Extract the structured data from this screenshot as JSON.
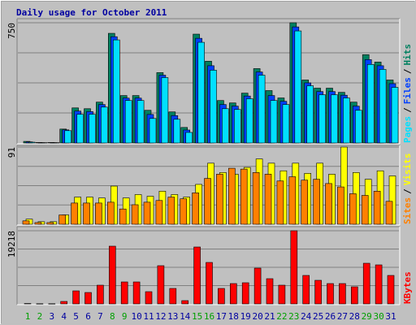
{
  "title": "Daily usage for October 2011",
  "legend_separator": "/",
  "chart_data": [
    {
      "type": "bar",
      "ylim": [
        0,
        750
      ],
      "yticks": [
        750
      ],
      "series": [
        {
          "name": "Hits",
          "color": "#008060",
          "values": [
            10,
            3,
            3,
            87,
            219,
            214,
            255,
            684,
            296,
            296,
            204,
            439,
            194,
            97,
            679,
            510,
            265,
            250,
            311,
            464,
            327,
            281,
            750,
            393,
            342,
            342,
            316,
            255,
            551,
            505,
            393
          ]
        },
        {
          "name": "Files",
          "color": "#0040ff",
          "values": [
            7,
            2,
            2,
            82,
            199,
            196,
            240,
            663,
            280,
            280,
            178,
            423,
            171,
            81,
            653,
            482,
            240,
            230,
            293,
            443,
            296,
            260,
            724,
            375,
            321,
            321,
            298,
            230,
            520,
            482,
            370
          ]
        },
        {
          "name": "Pages",
          "color": "#00e0ff",
          "values": [
            5,
            2,
            2,
            77,
            179,
            179,
            224,
            643,
            265,
            265,
            153,
            408,
            148,
            66,
            628,
            454,
            214,
            209,
            276,
            423,
            265,
            240,
            699,
            357,
            301,
            301,
            281,
            204,
            490,
            459,
            347
          ]
        }
      ]
    },
    {
      "type": "bar",
      "ylim": [
        0,
        91
      ],
      "yticks": [
        91
      ],
      "series": [
        {
          "name": "Visits",
          "color": "#ffff00",
          "values": [
            6,
            3,
            3,
            11,
            32,
            32,
            31,
            45,
            31,
            35,
            33,
            39,
            35,
            32,
            47,
            72,
            61,
            59,
            67,
            77,
            72,
            63,
            72,
            60,
            72,
            59,
            91,
            61,
            53,
            63,
            57
          ]
        },
        {
          "name": "Sites",
          "color": "#ff8000",
          "values": [
            4,
            2,
            2,
            11,
            25,
            25,
            25,
            26,
            18,
            23,
            26,
            28,
            32,
            30,
            37,
            54,
            59,
            66,
            65,
            61,
            59,
            51,
            56,
            52,
            53,
            48,
            44,
            36,
            34,
            39,
            27
          ]
        }
      ]
    },
    {
      "type": "bar",
      "ylim": [
        0,
        19218
      ],
      "yticks": [
        19218
      ],
      "categories": [
        "1",
        "2",
        "3",
        "4",
        "5",
        "6",
        "7",
        "8",
        "9",
        "10",
        "11",
        "12",
        "13",
        "14",
        "15",
        "16",
        "17",
        "18",
        "19",
        "20",
        "21",
        "22",
        "23",
        "24",
        "25",
        "26",
        "27",
        "28",
        "29",
        "30",
        "31"
      ],
      "weekend_color": "#00a000",
      "weekday_color": "#0000a0",
      "weekends": [
        "1",
        "2",
        "8",
        "9",
        "15",
        "16",
        "22",
        "23",
        "29",
        "30"
      ],
      "series": [
        {
          "name": "KBytes",
          "color": "#ff0000",
          "values": [
            100,
            50,
            50,
            640,
            3416,
            2990,
            4912,
            15162,
            5766,
            5766,
            3203,
            10036,
            4058,
            854,
            14948,
            10890,
            4058,
            5339,
            5552,
            9396,
            6620,
            4912,
            19218,
            7474,
            6193,
            5339,
            5339,
            4485,
            10677,
            10250,
            7474
          ]
        }
      ]
    }
  ]
}
